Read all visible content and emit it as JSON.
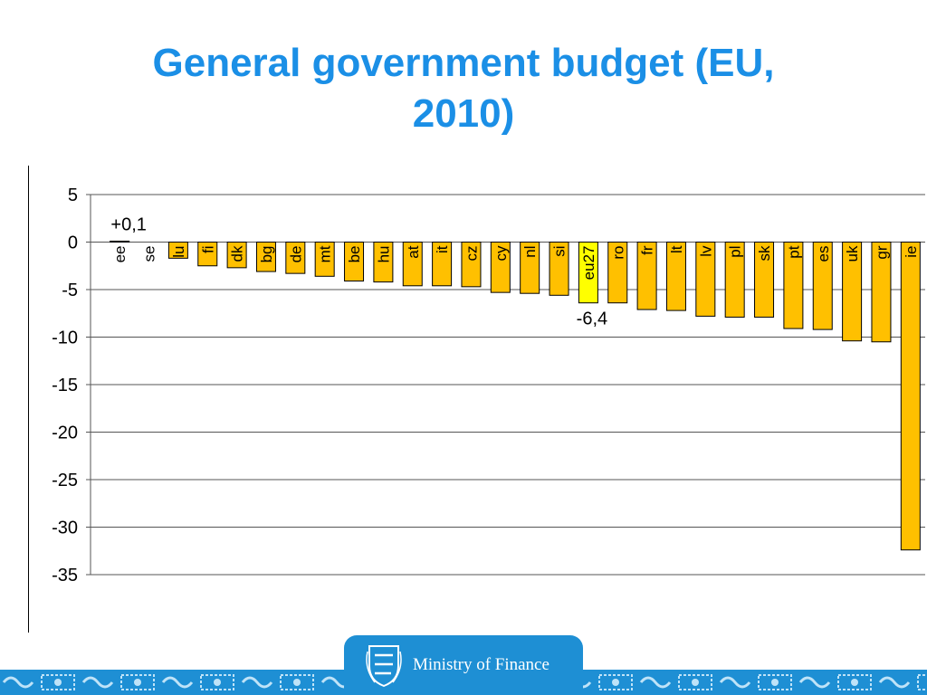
{
  "header": {
    "title_line1": "General government budget (EU,",
    "title_line2": "2010)"
  },
  "footer": {
    "ministry_label": "Ministry of Finance"
  },
  "colors": {
    "title": "#1b8fe6",
    "bar": "#ffc000",
    "bar_highlight": "#ffff00",
    "footer": "#1e8fd4"
  },
  "chart_data": {
    "type": "bar",
    "title": "",
    "xlabel": "",
    "ylabel": "",
    "ylim": [
      -35,
      5
    ],
    "yticks": [
      5,
      0,
      -5,
      -10,
      -15,
      -20,
      -25,
      -30,
      -35
    ],
    "grid": true,
    "legend": "none",
    "categories": [
      "ee",
      "se",
      "lu",
      "fi",
      "dk",
      "bg",
      "de",
      "mt",
      "be",
      "hu",
      "at",
      "it",
      "cz",
      "cy",
      "nl",
      "si",
      "eu27",
      "ro",
      "fr",
      "lt",
      "lv",
      "pl",
      "sk",
      "pt",
      "es",
      "uk",
      "gr",
      "ie"
    ],
    "values": [
      0.1,
      0.0,
      -1.7,
      -2.5,
      -2.7,
      -3.1,
      -3.3,
      -3.6,
      -4.1,
      -4.2,
      -4.6,
      -4.6,
      -4.7,
      -5.3,
      -5.4,
      -5.6,
      -6.4,
      -6.4,
      -7.1,
      -7.2,
      -7.8,
      -7.9,
      -7.9,
      -9.1,
      -9.2,
      -10.4,
      -10.5,
      -32.4
    ],
    "highlight": "eu27",
    "annotations": [
      {
        "category": "ee",
        "text": "+0,1"
      },
      {
        "category": "eu27",
        "text": "-6,4"
      }
    ]
  }
}
